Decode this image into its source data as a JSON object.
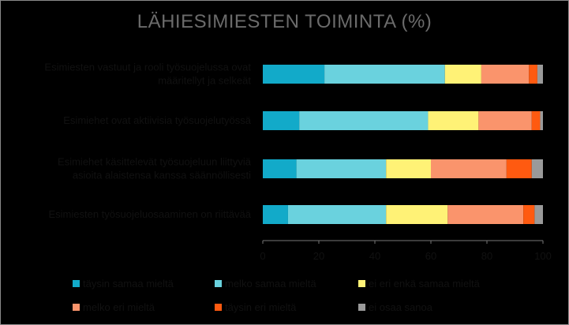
{
  "chart_data": {
    "type": "bar",
    "orientation": "horizontal",
    "stacked": true,
    "title": "LÄHIESIMIESTEN TOIMINTA (%)",
    "categories": [
      [
        "Esimiesten vastuut ja rooli työsuojelussa ovat",
        "määritellyt ja selkeät"
      ],
      [
        "Esimiehet ovat aktiivisia työsuojelutyössä"
      ],
      [
        "Esimiehet käsittelevät työsuojeluun liittyviä",
        "asioita alaistensa kanssa säännöllisesti"
      ],
      [
        "Esimiesten työsuojeluosaaminen on riittävää"
      ]
    ],
    "series": [
      {
        "name": "täysin samaa mieltä",
        "color": "#12aac9",
        "values": [
          22,
          13,
          12,
          9
        ]
      },
      {
        "name": "melko samaa mieltä",
        "color": "#6ad2de",
        "values": [
          43,
          46,
          32,
          35
        ]
      },
      {
        "name": "ei eri enkä samaa mieltä",
        "color": "#fff276",
        "values": [
          13,
          18,
          16,
          22
        ]
      },
      {
        "name": "melko eri mieltä",
        "color": "#fa946c",
        "values": [
          17,
          19,
          27,
          27
        ]
      },
      {
        "name": "täysin eri mieltä",
        "color": "#ff5a10",
        "values": [
          3,
          3,
          9,
          4
        ]
      },
      {
        "name": "ei osaa sanoa",
        "color": "#9a9a9a",
        "values": [
          2,
          1,
          4,
          3
        ]
      }
    ],
    "xlim": [
      0,
      100
    ],
    "xticks": [
      "0",
      "20",
      "40",
      "60",
      "80",
      "100"
    ],
    "grid": false,
    "legend_position": "bottom"
  }
}
